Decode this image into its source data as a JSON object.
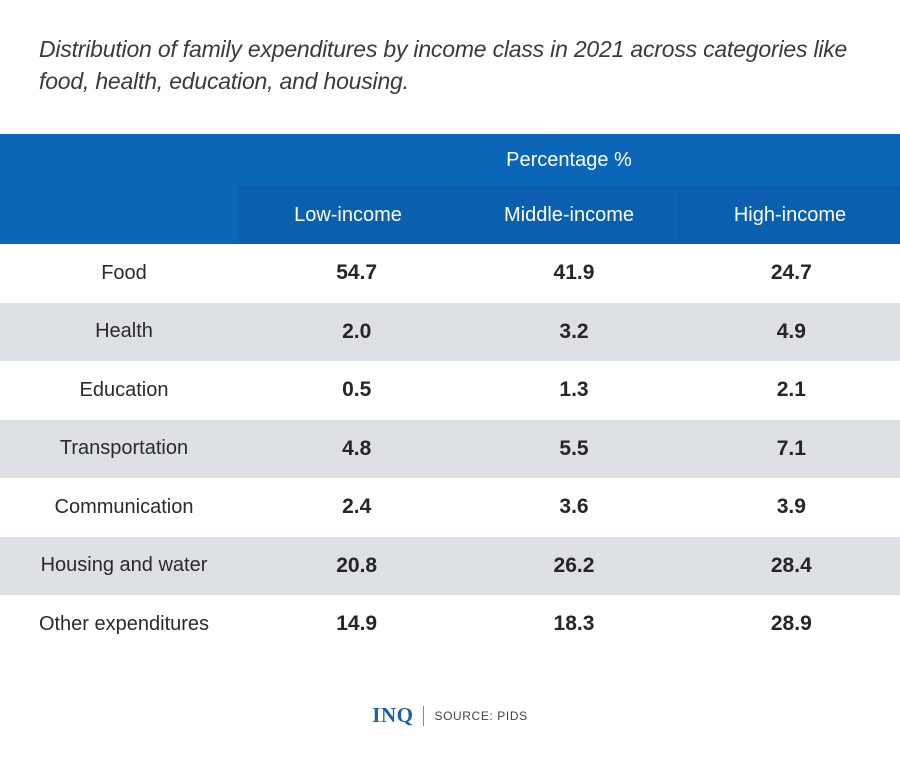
{
  "title": "Distribution of family expenditures by income class in 2021 across categories like food, health, education, and housing.",
  "header": {
    "group_label": "Percentage %",
    "columns": [
      "Low-income",
      "Middle-income",
      "High-income"
    ]
  },
  "rows": [
    {
      "category": "Food",
      "values": [
        "54.7",
        "41.9",
        "24.7"
      ]
    },
    {
      "category": "Health",
      "values": [
        "2.0",
        "3.2",
        "4.9"
      ]
    },
    {
      "category": "Education",
      "values": [
        "0.5",
        "1.3",
        "2.1"
      ]
    },
    {
      "category": "Transportation",
      "values": [
        "4.8",
        "5.5",
        "7.1"
      ]
    },
    {
      "category": "Communication",
      "values": [
        "2.4",
        "3.6",
        "3.9"
      ]
    },
    {
      "category": "Housing and water",
      "values": [
        "20.8",
        "26.2",
        "28.4"
      ]
    },
    {
      "category": "Other expenditures",
      "values": [
        "14.9",
        "18.3",
        "28.9"
      ]
    }
  ],
  "footer": {
    "logo": "INQ",
    "source": "SOURCE: PIDS"
  },
  "colors": {
    "header_blue": "#0b66b8",
    "stripe_gray": "#dde0e4"
  },
  "chart_data": {
    "type": "table",
    "title": "Distribution of family expenditures by income class in 2021 across categories like food, health, education, and housing.",
    "unit": "Percentage %",
    "columns": [
      "Low-income",
      "Middle-income",
      "High-income"
    ],
    "categories": [
      "Food",
      "Health",
      "Education",
      "Transportation",
      "Communication",
      "Housing and water",
      "Other expenditures"
    ],
    "series": [
      {
        "name": "Low-income",
        "values": [
          54.7,
          2.0,
          0.5,
          4.8,
          2.4,
          20.8,
          14.9
        ]
      },
      {
        "name": "Middle-income",
        "values": [
          41.9,
          3.2,
          1.3,
          5.5,
          3.6,
          26.2,
          18.3
        ]
      },
      {
        "name": "High-income",
        "values": [
          24.7,
          4.9,
          2.1,
          7.1,
          3.9,
          28.4,
          28.9
        ]
      }
    ],
    "source": "PIDS"
  }
}
